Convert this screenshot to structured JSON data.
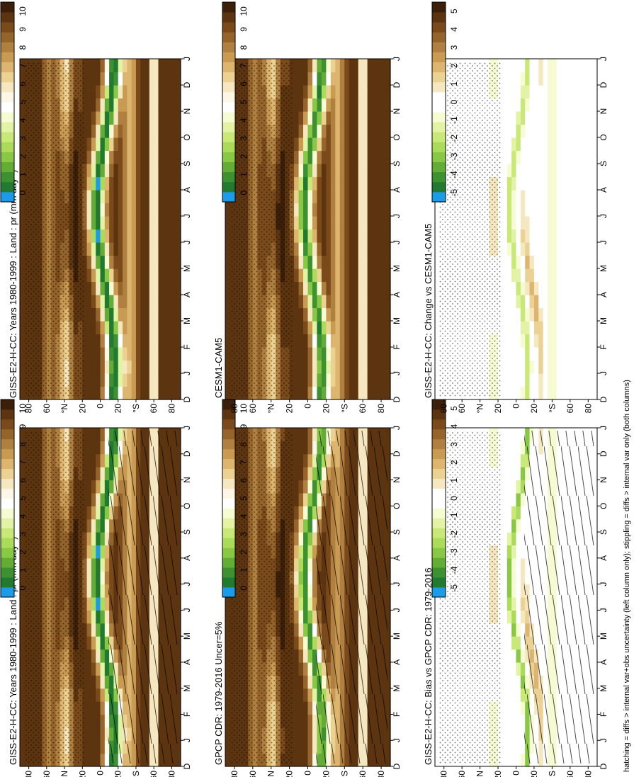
{
  "footnote": "hatching = diffs > internal var+obs uncertainty (left column only); stippling = diffs > internal var only (both columns)",
  "colors": {
    "absolute": [
      "#3b1f08",
      "#5c3410",
      "#7a4a1a",
      "#94642a",
      "#b08040",
      "#c99a52",
      "#ddb56e",
      "#ecd292",
      "#f5e8c0",
      "#fbf6e6",
      "#ffffff",
      "#f7fbd2",
      "#e2f3a5",
      "#c8e878",
      "#aadc5a",
      "#88c845",
      "#63ad36",
      "#3e9130",
      "#217a30",
      "#1c9be8"
    ],
    "difference": [
      "#3b1f08",
      "#5c3410",
      "#7a4a1a",
      "#94642a",
      "#b08040",
      "#c99a52",
      "#ddb56e",
      "#ecd292",
      "#f5e8c0",
      "#ffffff",
      "#ffffff",
      "#f7fbd2",
      "#e2f3a5",
      "#c8e878",
      "#aadc5a",
      "#88c845",
      "#63ad36",
      "#3e9130",
      "#217a30",
      "#1c9be8"
    ],
    "background_diff": "#f6f7fb"
  },
  "chart_data": [
    {
      "type": "heatmap",
      "kind": "absolute",
      "hatch": true,
      "stipple": true,
      "title": "GISS-E2-H-CC: Years 1980-1999 : Land : pr (mm day",
      "title_sup": "-1",
      "title_tail": ")",
      "x_ticks": [
        "D",
        "J",
        "F",
        "M",
        "A",
        "M",
        "J",
        "J",
        "A",
        "S",
        "O",
        "N",
        "D",
        "J"
      ],
      "y_ticks": [
        "80",
        "60",
        "°N",
        "20",
        "0",
        "20",
        "°S",
        "60",
        "80"
      ],
      "y_range_deg": [
        -90,
        90
      ],
      "colorbar_ticks": [
        "0",
        "1",
        "2",
        "3",
        "4",
        "5",
        "6",
        "7",
        "8",
        "9",
        "10"
      ],
      "colorbar_range": [
        0,
        10.5
      ],
      "units": "mm day-1"
    },
    {
      "type": "heatmap",
      "kind": "absolute",
      "hatch": false,
      "stipple": true,
      "title": "GISS-E2-H-CC: Years 1980-1999 : Land : pr (mm day",
      "title_sup": "-1",
      "title_tail": ")",
      "x_ticks": [
        "D",
        "J",
        "F",
        "M",
        "A",
        "M",
        "J",
        "J",
        "A",
        "S",
        "O",
        "N",
        "D",
        "J"
      ],
      "y_ticks": [
        "80",
        "60",
        "°N",
        "20",
        "0",
        "20",
        "°S",
        "60",
        "80"
      ],
      "y_range_deg": [
        -90,
        90
      ],
      "colorbar_ticks": [
        "0",
        "1",
        "2",
        "3",
        "4",
        "5",
        "6",
        "7",
        "8",
        "9",
        "10"
      ],
      "colorbar_range": [
        0,
        10.5
      ],
      "units": "mm day-1"
    },
    {
      "type": "heatmap",
      "kind": "absolute",
      "hatch": true,
      "stipple": true,
      "title": "GPCP CDR: 1979-2016 Uncer=5%",
      "x_ticks": [
        "D",
        "J",
        "F",
        "M",
        "A",
        "M",
        "J",
        "J",
        "A",
        "S",
        "O",
        "N",
        "D",
        "J"
      ],
      "y_ticks": [
        "80",
        "60",
        "°N",
        "20",
        "0",
        "20",
        "°S",
        "60",
        "80"
      ],
      "y_range_deg": [
        -90,
        90
      ],
      "colorbar_ticks": [
        "0",
        "1",
        "2",
        "3",
        "4",
        "5",
        "6",
        "7",
        "8",
        "9",
        "10"
      ],
      "colorbar_range": [
        0,
        10.5
      ]
    },
    {
      "type": "heatmap",
      "kind": "absolute",
      "hatch": false,
      "stipple": true,
      "title": "CESM1-CAM5",
      "x_ticks": [
        "D",
        "J",
        "F",
        "M",
        "A",
        "M",
        "J",
        "J",
        "A",
        "S",
        "O",
        "N",
        "D",
        "J"
      ],
      "y_ticks": [
        "80",
        "60",
        "°N",
        "20",
        "0",
        "20",
        "°S",
        "60",
        "80"
      ],
      "y_range_deg": [
        -90,
        90
      ],
      "colorbar_ticks": [
        "0",
        "1",
        "2",
        "3",
        "4",
        "5",
        "6",
        "7",
        "8",
        "9",
        "10"
      ],
      "colorbar_range": [
        0,
        10.5
      ]
    },
    {
      "type": "heatmap",
      "kind": "difference",
      "hatch": true,
      "stipple": true,
      "title": "GISS-E2-H-CC: Bias vs GPCP CDR: 1979-2016",
      "x_ticks": [
        "D",
        "J",
        "F",
        "M",
        "A",
        "M",
        "J",
        "J",
        "A",
        "S",
        "O",
        "N",
        "D",
        "J"
      ],
      "y_ticks": [
        "80",
        "60",
        "°N",
        "20",
        "0",
        "20",
        "°S",
        "60",
        "80"
      ],
      "y_range_deg": [
        -90,
        90
      ],
      "colorbar_ticks": [
        "-5",
        "-4",
        "-3",
        "-2",
        "-1",
        "0",
        "1",
        "2",
        "3",
        "4",
        "5"
      ],
      "colorbar_range": [
        -5.5,
        5.5
      ]
    },
    {
      "type": "heatmap",
      "kind": "difference",
      "hatch": false,
      "stipple": true,
      "title": "GISS-E2-H-CC: Change vs CESM1-CAM5",
      "x_ticks": [
        "D",
        "J",
        "F",
        "M",
        "A",
        "M",
        "J",
        "J",
        "A",
        "S",
        "O",
        "N",
        "D",
        "J"
      ],
      "y_ticks": [
        "80",
        "60",
        "°N",
        "20",
        "0",
        "20",
        "°S",
        "60",
        "80"
      ],
      "y_range_deg": [
        -90,
        90
      ],
      "colorbar_ticks": [
        "-5",
        "-4",
        "-3",
        "-2",
        "-1",
        "0",
        "1",
        "2",
        "3",
        "4",
        "5"
      ],
      "colorbar_range": [
        -5.5,
        5.5
      ]
    }
  ]
}
